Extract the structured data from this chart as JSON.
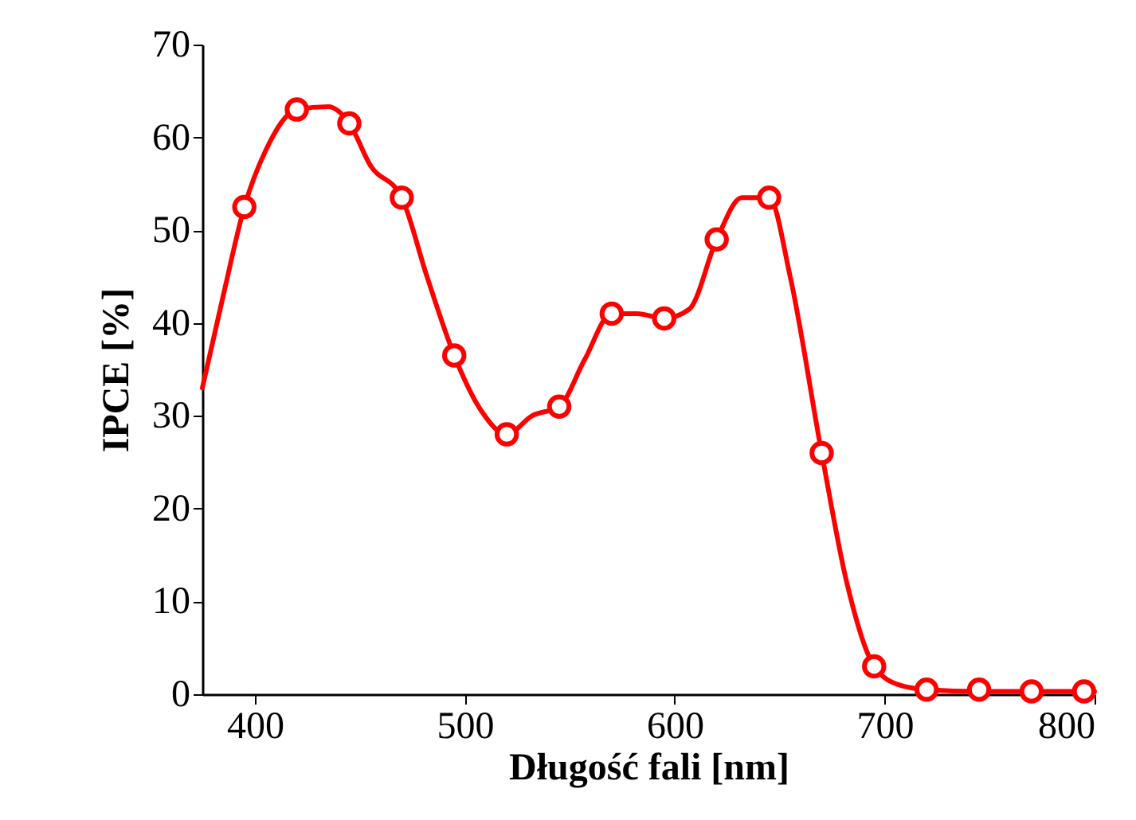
{
  "chart_data": {
    "type": "line",
    "xlabel": "Długość fali [nm]",
    "ylabel": "IPCE [%]",
    "xlim": [
      375,
      800
    ],
    "ylim": [
      0,
      70
    ],
    "xticks": [
      400,
      500,
      600,
      700,
      800
    ],
    "yticks": [
      0,
      10,
      20,
      30,
      40,
      50,
      60,
      70
    ],
    "grid": false,
    "line_style": "solid",
    "series": [
      {
        "marker": "none",
        "color": "#ff0000",
        "x": [
          375,
          385,
          395,
          405,
          420,
          435,
          445,
          455,
          470,
          482,
          495,
          508,
          520,
          532,
          545,
          557,
          570,
          582,
          595,
          607,
          620,
          632,
          645,
          655,
          670,
          682,
          695,
          707,
          720,
          745,
          770,
          795,
          800
        ],
        "values": [
          33,
          43,
          52.5,
          58.5,
          63,
          63.3,
          61.5,
          57,
          53.5,
          45,
          36.5,
          30.5,
          28,
          30,
          31,
          36,
          41,
          41,
          40.5,
          41.5,
          49,
          53.5,
          53.5,
          45,
          26,
          12,
          3,
          1,
          0.5,
          0.3,
          0.3,
          0.3,
          0.3
        ]
      },
      {
        "type": "scatter",
        "marker": "circle",
        "color": "#ff0000",
        "x": [
          395,
          420,
          445,
          470,
          495,
          520,
          545,
          570,
          595,
          620,
          645,
          670,
          695,
          720,
          745,
          770,
          795
        ],
        "values": [
          52.5,
          63,
          61.5,
          53.5,
          36.5,
          28,
          31,
          41,
          40.5,
          49,
          53.5,
          26,
          3,
          0.5,
          0.5,
          0.3,
          0.3
        ]
      }
    ]
  }
}
